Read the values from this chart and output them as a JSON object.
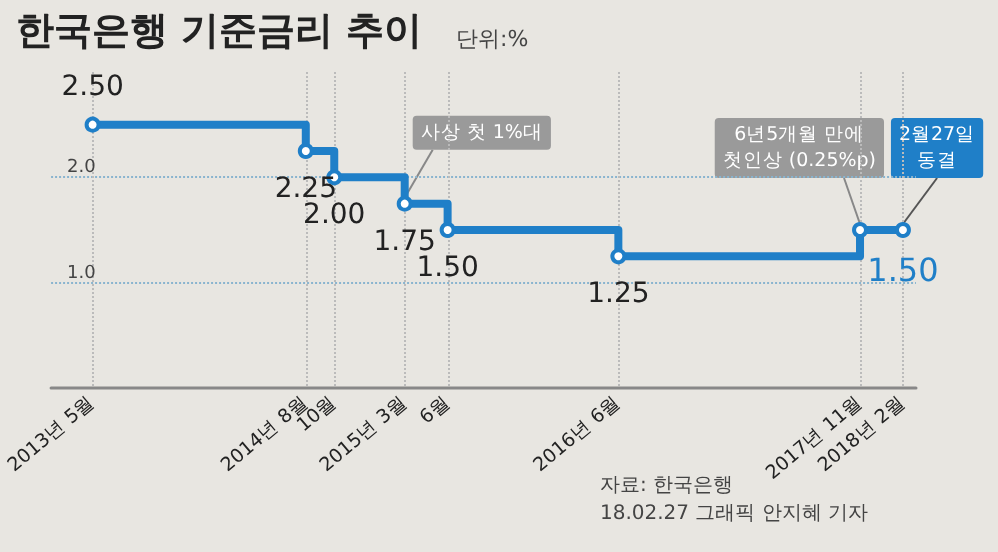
{
  "chart_data": {
    "type": "step",
    "title": "한국은행 기준금리 추이",
    "ylabel": "단위:%",
    "x": [
      "2013-05",
      "2014-08",
      "2014-10",
      "2015-03",
      "2015-06",
      "2016-06",
      "2017-11",
      "2018-02"
    ],
    "series": [
      {
        "color": "#1f7fc8",
        "values": [
          2.5,
          2.25,
          2.0,
          1.75,
          1.5,
          1.25,
          1.5,
          1.5
        ],
        "value_labels": [
          "2.50",
          "2.25",
          "2.00",
          "1.75",
          "1.50",
          "1.25",
          null,
          "1.50"
        ]
      }
    ],
    "xlim": [
      "2013-02",
      "2018-03"
    ],
    "xticks": [
      {
        "value": "2013-05",
        "label": "2013년 5월"
      },
      {
        "value": "2014-08",
        "label": "2014년 8월"
      },
      {
        "value": "2014-10",
        "label": "10월"
      },
      {
        "value": "2015-03",
        "label": "2015년 3월"
      },
      {
        "value": "2015-06",
        "label": "6월"
      },
      {
        "value": "2016-06",
        "label": "2016년 6월"
      },
      {
        "value": "2017-11",
        "label": "2017년 11월"
      },
      {
        "value": "2018-02",
        "label": "2018년 2월"
      }
    ],
    "ylim": [
      0,
      3
    ],
    "yticks": [
      {
        "value": 1,
        "label": "1.0"
      },
      {
        "value": 2,
        "label": "2.0"
      }
    ],
    "grid": true,
    "marker": "circle",
    "annotations": [
      {
        "text": "사상 첫 1%대",
        "x": "2015-03",
        "y": 1.75
      },
      {
        "text": "6년5개월 만에\n첫인상 (0.25%p)",
        "x": "2017-11",
        "y": 1.5
      },
      {
        "text": "2월27일\n동결",
        "x": "2018-02",
        "y": 1.5
      },
      "자료: 한국은행",
      "18.02.27 그래픽 안지혜 기자"
    ]
  }
}
